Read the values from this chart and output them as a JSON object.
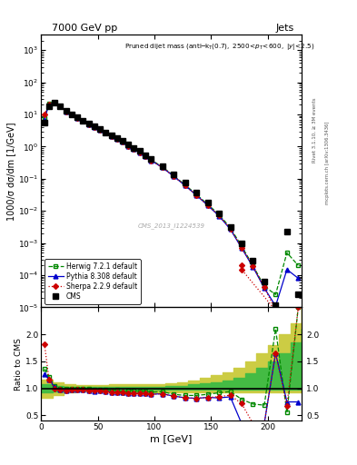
{
  "title_top": "7000 GeV pp",
  "title_right": "Jets",
  "xlabel": "m [GeV]",
  "ylabel_main": "1000/σ dσ/dm [1/GeV]",
  "ylabel_ratio": "Ratio to CMS",
  "watermark": "CMS_2013_I1224539",
  "side_text1": "Rivet 3.1.10, ≥ 3M events",
  "side_text2": "mcplots.cern.ch [arXiv:1306.3436]",
  "cms_x": [
    3,
    7,
    12,
    17,
    22,
    27,
    32,
    37,
    42,
    47,
    52,
    57,
    62,
    67,
    72,
    77,
    82,
    87,
    92,
    97,
    107,
    117,
    127,
    137,
    147,
    157,
    167,
    177,
    187,
    197,
    207,
    217,
    227
  ],
  "cms_y": [
    5.5,
    18,
    23,
    18,
    13,
    10,
    8,
    6.5,
    5.2,
    4.3,
    3.5,
    2.8,
    2.3,
    1.85,
    1.5,
    1.15,
    0.92,
    0.72,
    0.55,
    0.42,
    0.25,
    0.14,
    0.075,
    0.038,
    0.018,
    0.0085,
    0.0032,
    0.001,
    0.00028,
    6.5e-05,
    1.2e-05,
    0.0022,
    2.5e-05
  ],
  "herwig_x": [
    3,
    7,
    12,
    17,
    22,
    27,
    32,
    37,
    42,
    47,
    52,
    57,
    62,
    67,
    72,
    77,
    82,
    87,
    92,
    97,
    107,
    117,
    127,
    137,
    147,
    157,
    167,
    177,
    187,
    197,
    207,
    217,
    227
  ],
  "herwig_y": [
    7.5,
    22,
    24,
    18,
    13,
    10,
    8,
    6.5,
    5.2,
    4.2,
    3.4,
    2.75,
    2.2,
    1.8,
    1.4,
    1.1,
    0.88,
    0.68,
    0.52,
    0.39,
    0.235,
    0.125,
    0.065,
    0.033,
    0.016,
    0.0078,
    0.003,
    0.0008,
    0.0002,
    4.5e-05,
    2.5e-05,
    0.0005,
    0.0002
  ],
  "pythia_x": [
    3,
    7,
    12,
    17,
    22,
    27,
    32,
    37,
    42,
    47,
    52,
    57,
    62,
    67,
    72,
    77,
    82,
    87,
    92,
    97,
    107,
    117,
    127,
    137,
    147,
    157,
    167,
    177,
    187,
    197,
    207,
    217,
    227
  ],
  "pythia_y": [
    7.0,
    21,
    23.5,
    17.5,
    12.5,
    9.8,
    7.8,
    6.3,
    5.0,
    4.1,
    3.35,
    2.65,
    2.15,
    1.72,
    1.38,
    1.05,
    0.84,
    0.65,
    0.5,
    0.375,
    0.225,
    0.12,
    0.062,
    0.031,
    0.015,
    0.007,
    0.0027,
    0.0007,
    0.00018,
    4e-05,
    1.1e-05,
    0.00015,
    8e-05
  ],
  "sherpa_x": [
    3,
    7,
    12,
    17,
    22,
    27,
    32,
    37,
    42,
    47,
    52,
    57,
    62,
    67,
    72,
    77,
    82,
    87,
    92,
    97,
    107,
    117,
    127,
    137,
    147,
    157,
    167,
    177,
    187,
    197,
    207,
    177,
    177
  ],
  "sherpa_y": [
    10,
    21,
    23,
    17.5,
    12.5,
    9.8,
    7.8,
    6.3,
    5.0,
    4.1,
    3.35,
    2.65,
    2.15,
    1.72,
    1.38,
    1.05,
    0.84,
    0.65,
    0.5,
    0.375,
    0.225,
    0.12,
    0.062,
    0.031,
    0.015,
    0.0072,
    0.0028,
    0.00072,
    0.00019,
    4.2e-05,
    8e-06,
    0.00015,
    0.0002
  ],
  "ratio_herwig_x": [
    3,
    7,
    12,
    17,
    22,
    27,
    32,
    37,
    42,
    47,
    52,
    57,
    62,
    67,
    72,
    77,
    82,
    87,
    92,
    97,
    107,
    117,
    127,
    137,
    147,
    157,
    167,
    177,
    187,
    197,
    207,
    217,
    227
  ],
  "ratio_herwig_y": [
    1.36,
    1.22,
    1.04,
    1.0,
    1.0,
    1.0,
    1.0,
    1.0,
    1.0,
    0.98,
    0.97,
    0.98,
    0.96,
    0.97,
    0.93,
    0.96,
    0.96,
    0.94,
    0.95,
    0.93,
    0.94,
    0.89,
    0.87,
    0.87,
    0.89,
    0.92,
    0.94,
    0.8,
    0.71,
    0.69,
    2.1,
    0.55,
    2.5
  ],
  "ratio_pythia_x": [
    3,
    7,
    12,
    17,
    22,
    27,
    32,
    37,
    42,
    47,
    52,
    57,
    62,
    67,
    72,
    77,
    82,
    87,
    92,
    97,
    107,
    117,
    127,
    137,
    147,
    157,
    167,
    177,
    187,
    197,
    207,
    217,
    227
  ],
  "ratio_pythia_y": [
    1.27,
    1.17,
    1.02,
    0.97,
    0.96,
    0.98,
    0.975,
    0.97,
    0.96,
    0.95,
    0.957,
    0.946,
    0.935,
    0.93,
    0.92,
    0.913,
    0.913,
    0.903,
    0.909,
    0.893,
    0.9,
    0.857,
    0.827,
    0.816,
    0.833,
    0.824,
    0.844,
    0.35,
    0.35,
    0.35,
    1.65,
    0.75,
    0.75
  ],
  "ratio_sherpa_x": [
    3,
    7,
    12,
    17,
    22,
    27,
    32,
    37,
    42,
    47,
    52,
    57,
    62,
    67,
    72,
    77,
    82,
    87,
    92,
    97,
    107,
    117,
    127,
    137,
    147,
    157,
    167,
    177,
    187,
    197,
    207,
    217,
    227
  ],
  "ratio_sherpa_y": [
    1.82,
    1.17,
    1.0,
    0.97,
    0.962,
    0.98,
    0.975,
    0.97,
    0.96,
    0.953,
    0.957,
    0.946,
    0.935,
    0.93,
    0.92,
    0.913,
    0.913,
    0.903,
    0.909,
    0.893,
    0.9,
    0.857,
    0.827,
    0.816,
    0.833,
    0.847,
    0.875,
    0.72,
    0.35,
    0.35,
    1.65,
    0.68,
    2.5
  ],
  "band_x": [
    0,
    10,
    20,
    30,
    40,
    50,
    60,
    70,
    80,
    90,
    100,
    110,
    120,
    130,
    140,
    150,
    160,
    170,
    180,
    190,
    200,
    210,
    220,
    230
  ],
  "band_inner_low": [
    0.93,
    0.95,
    0.97,
    0.98,
    0.98,
    0.98,
    0.97,
    0.97,
    0.97,
    0.97,
    0.97,
    0.97,
    0.97,
    0.97,
    0.97,
    0.97,
    0.97,
    0.97,
    0.97,
    0.97,
    0.97,
    0.97,
    0.97,
    0.97
  ],
  "band_inner_high": [
    1.07,
    1.05,
    1.03,
    1.02,
    1.02,
    1.02,
    1.03,
    1.03,
    1.03,
    1.03,
    1.03,
    1.05,
    1.05,
    1.07,
    1.09,
    1.12,
    1.15,
    1.2,
    1.28,
    1.38,
    1.5,
    1.65,
    1.85,
    2.1
  ],
  "band_outer_low": [
    0.83,
    0.88,
    0.92,
    0.94,
    0.94,
    0.94,
    0.93,
    0.93,
    0.93,
    0.93,
    0.93,
    0.93,
    0.93,
    0.93,
    0.93,
    0.93,
    0.93,
    0.93,
    0.93,
    0.93,
    0.93,
    0.93,
    0.93,
    0.93
  ],
  "band_outer_high": [
    1.17,
    1.12,
    1.08,
    1.06,
    1.06,
    1.06,
    1.07,
    1.07,
    1.07,
    1.07,
    1.07,
    1.1,
    1.12,
    1.15,
    1.19,
    1.24,
    1.3,
    1.38,
    1.5,
    1.65,
    1.8,
    2.0,
    2.2,
    2.5
  ],
  "colors": {
    "cms": "#000000",
    "herwig": "#008800",
    "pythia": "#0000cc",
    "sherpa": "#cc0000",
    "band_inner": "#44bb44",
    "band_outer": "#cccc44"
  },
  "xlim": [
    0,
    230
  ],
  "ylim_main": [
    1e-05,
    3000
  ],
  "ylim_ratio": [
    0.4,
    2.5
  ],
  "ratio_yticks": [
    0.5,
    1.0,
    1.5,
    2.0
  ]
}
